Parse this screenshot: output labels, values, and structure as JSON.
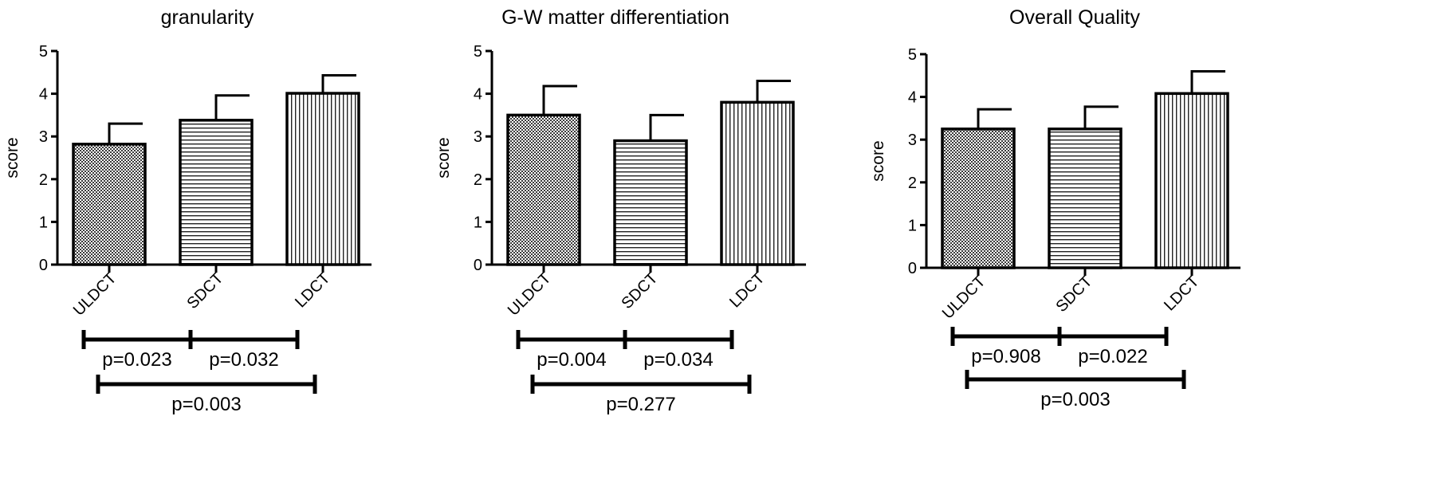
{
  "chart_data": [
    {
      "type": "bar",
      "title": "granularity",
      "ylabel": "score",
      "ylim": [
        0,
        5
      ],
      "yticks": [
        "0",
        "1",
        "2",
        "3",
        "4",
        "5"
      ],
      "categories": [
        "ULDCT",
        "SDCT",
        "LDCT"
      ],
      "values": [
        2.82,
        3.38,
        4.01
      ],
      "errors": [
        0.48,
        0.58,
        0.42
      ],
      "patterns": [
        "crosshatch",
        "horizontal",
        "vertical"
      ],
      "comparisons": [
        {
          "from": 0,
          "to": 1,
          "label": "p=0.023"
        },
        {
          "from": 1,
          "to": 2,
          "label": "p=0.032"
        },
        {
          "from": 0,
          "to": 2,
          "label": "p=0.003"
        }
      ]
    },
    {
      "type": "bar",
      "title": "G-W matter differentiation",
      "ylabel": "score",
      "ylim": [
        0,
        5
      ],
      "yticks": [
        "0",
        "1",
        "2",
        "3",
        "4",
        "5"
      ],
      "categories": [
        "ULDCT",
        "SDCT",
        "LDCT"
      ],
      "values": [
        3.5,
        2.9,
        3.8
      ],
      "errors": [
        0.68,
        0.6,
        0.5
      ],
      "patterns": [
        "crosshatch",
        "horizontal",
        "vertical"
      ],
      "comparisons": [
        {
          "from": 0,
          "to": 1,
          "label": "p=0.004"
        },
        {
          "from": 1,
          "to": 2,
          "label": "p=0.034"
        },
        {
          "from": 0,
          "to": 2,
          "label": "p=0.277"
        }
      ]
    },
    {
      "type": "bar",
      "title": "Overall Quality",
      "ylabel": "score",
      "ylim": [
        0,
        5
      ],
      "yticks": [
        "0",
        "1",
        "2",
        "3",
        "4",
        "5"
      ],
      "categories": [
        "ULDCT",
        "SDCT",
        "LDCT"
      ],
      "values": [
        3.25,
        3.25,
        4.08
      ],
      "errors": [
        0.46,
        0.52,
        0.52
      ],
      "patterns": [
        "crosshatch",
        "horizontal",
        "vertical"
      ],
      "comparisons": [
        {
          "from": 0,
          "to": 1,
          "label": "p=0.908"
        },
        {
          "from": 1,
          "to": 2,
          "label": "p=0.022"
        },
        {
          "from": 0,
          "to": 2,
          "label": "p=0.003"
        }
      ]
    }
  ]
}
